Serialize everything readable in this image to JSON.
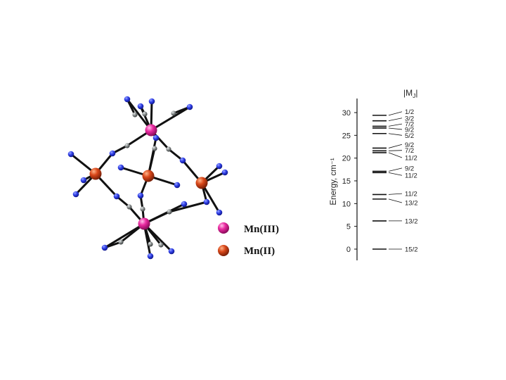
{
  "legend": {
    "items": [
      {
        "label": "Mn(III)",
        "color": "#e9209a"
      },
      {
        "label": "Mn(II)",
        "color": "#d9481a"
      }
    ]
  },
  "atom_colors": {
    "mn3": "#e9209a",
    "mn2": "#d9481a",
    "nitrogen": "#2f3fe8",
    "carbon": "#8a8f8f"
  },
  "chart_data": {
    "type": "energy-level-diagram",
    "ylabel": "Energy, cm⁻¹",
    "header": "|M",
    "header_sub": "J",
    "header_close": "|",
    "ylim": [
      -2,
      32
    ],
    "yticks": [
      0,
      5,
      10,
      15,
      20,
      25,
      30
    ],
    "levels": [
      29.4,
      28.2,
      27.0,
      26.6,
      25.4,
      22.2,
      21.6,
      21.2,
      17.1,
      16.8,
      12.0,
      11.0,
      6.2,
      0.0
    ],
    "labels": [
      {
        "text": "1/2",
        "energy": 30.2
      },
      {
        "text": "3/2",
        "energy": 28.8
      },
      {
        "text": "7/2",
        "energy": 27.5
      },
      {
        "text": "9/2",
        "energy": 26.3
      },
      {
        "text": "5/2",
        "energy": 25.0
      },
      {
        "text": "9/2",
        "energy": 23.0
      },
      {
        "text": "7/2",
        "energy": 21.7
      },
      {
        "text": "11/2",
        "energy": 20.1
      },
      {
        "text": "9/2",
        "energy": 17.8
      },
      {
        "text": "11/2",
        "energy": 16.2
      },
      {
        "text": "11/2",
        "energy": 12.2
      },
      {
        "text": "13/2",
        "energy": 10.2
      },
      {
        "text": "13/2",
        "energy": 6.2
      },
      {
        "text": "15/2",
        "energy": 0.0
      }
    ]
  }
}
